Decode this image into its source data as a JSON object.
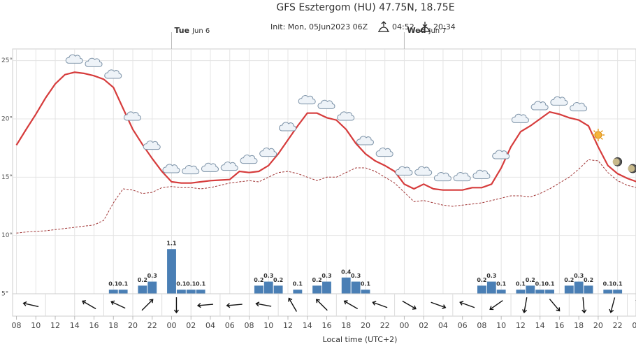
{
  "chart_data": {
    "type": "line",
    "title": "GFS Esztergom (HU) 47.75N, 18.75E",
    "subtitle": {
      "init": "Init: Mon, 05Jun2023 06Z",
      "sunrise": "04:52",
      "sunset": "20:34"
    },
    "x_label": "Local time (UTC+2)",
    "days": [
      {
        "weekday": "Tue",
        "date": "Jun 6",
        "x": 16
      },
      {
        "weekday": "Wed",
        "date": "Jun 7",
        "x": 40
      }
    ],
    "x": [
      0,
      1,
      2,
      3,
      4,
      5,
      6,
      7,
      8,
      9,
      10,
      11,
      12,
      13,
      14,
      15,
      16,
      17,
      18,
      19,
      20,
      21,
      22,
      23,
      24,
      25,
      26,
      27,
      28,
      29,
      30,
      31,
      32,
      33,
      34,
      35,
      36,
      37,
      38,
      39,
      40,
      41,
      42,
      43,
      44,
      45,
      46,
      47,
      48,
      49,
      50,
      51,
      52,
      53,
      54,
      55,
      56,
      57,
      58,
      59,
      60,
      61,
      62,
      63,
      64
    ],
    "series": [
      {
        "color": "#d63c3c",
        "dashed": false,
        "values": [
          17.75,
          19.1,
          20.4,
          21.8,
          23,
          23.8,
          24,
          23.9,
          23.7,
          23.4,
          22.7,
          20.9,
          19.1,
          17.8,
          16.6,
          15.5,
          14.6,
          14.5,
          14.5,
          14.6,
          14.7,
          14.75,
          14.8,
          15.5,
          15.4,
          15.5,
          16,
          17,
          18.2,
          19.4,
          20.5,
          20.5,
          20.1,
          19.9,
          19.1,
          17.9,
          17,
          16.4,
          16,
          15.5,
          14.4,
          14,
          14.4,
          14,
          13.9,
          13.9,
          13.9,
          14.1,
          14.1,
          14.4,
          15.8,
          17.6,
          18.9,
          19.4,
          20,
          20.6,
          20.4,
          20.1,
          19.9,
          19.4,
          17.6,
          16,
          15.3,
          14.9,
          14.6
        ]
      },
      {
        "color": "#a03434",
        "dashed": true,
        "values": [
          10.2,
          10.3,
          10.35,
          10.4,
          10.5,
          10.6,
          10.7,
          10.8,
          10.9,
          11.3,
          12.8,
          14,
          13.9,
          13.6,
          13.7,
          14.1,
          14.2,
          14.1,
          14.1,
          14,
          14.1,
          14.3,
          14.5,
          14.6,
          14.7,
          14.6,
          15,
          15.4,
          15.5,
          15.3,
          15,
          14.7,
          15,
          15,
          15.4,
          15.8,
          15.8,
          15.5,
          15,
          14.5,
          13.7,
          12.9,
          13,
          12.8,
          12.6,
          12.5,
          12.6,
          12.7,
          12.8,
          13,
          13.2,
          13.4,
          13.4,
          13.3,
          13.6,
          14,
          14.5,
          15,
          15.7,
          16.5,
          16.4,
          15.4,
          14.7,
          14.3,
          14.1
        ]
      }
    ],
    "precipitation": {
      "color": "#4a7fb5",
      "x": [
        10,
        11,
        13,
        14,
        16,
        17,
        18,
        19,
        25,
        26,
        27,
        29,
        31,
        32,
        34,
        35,
        36,
        48,
        49,
        50,
        52,
        53,
        54,
        55,
        57,
        58,
        59,
        61,
        62
      ],
      "values": [
        0.1,
        0.1,
        0.2,
        0.3,
        1.1,
        0.1,
        0.1,
        0.1,
        0.2,
        0.3,
        0.2,
        0.1,
        0.2,
        0.3,
        0.4,
        0.3,
        0.1,
        0.2,
        0.3,
        0.1,
        0.1,
        0.2,
        0.1,
        0.1,
        0.2,
        0.3,
        0.2,
        0.1,
        0.1
      ]
    },
    "wind": {
      "x": [
        1.5,
        4.5,
        7.5,
        10.5,
        13.5,
        16.5,
        19.5,
        22.5,
        25.5,
        28.5,
        31.5,
        34.5,
        37.5,
        40.5,
        43.5,
        46.5,
        49.5,
        52.5,
        55.5,
        58.5,
        61.5,
        64.5
      ],
      "direction": [
        283,
        null,
        300,
        295,
        45,
        180,
        265,
        265,
        280,
        330,
        315,
        300,
        290,
        120,
        110,
        290,
        235,
        190,
        140,
        175,
        195,
        130
      ]
    },
    "xlim": [
      -0.4,
      63.9
    ],
    "ylim": [
      5,
      26
    ],
    "xticks": [
      {
        "value": 0,
        "label": "08"
      },
      {
        "value": 2,
        "label": "10"
      },
      {
        "value": 4,
        "label": "12"
      },
      {
        "value": 6,
        "label": "14"
      },
      {
        "value": 8,
        "label": "16"
      },
      {
        "value": 10,
        "label": "18"
      },
      {
        "value": 12,
        "label": "20"
      },
      {
        "value": 14,
        "label": "22"
      },
      {
        "value": 16,
        "label": "00"
      },
      {
        "value": 18,
        "label": "02"
      },
      {
        "value": 20,
        "label": "04"
      },
      {
        "value": 22,
        "label": "06"
      },
      {
        "value": 24,
        "label": "08"
      },
      {
        "value": 26,
        "label": "10"
      },
      {
        "value": 28,
        "label": "12"
      },
      {
        "value": 30,
        "label": "14"
      },
      {
        "value": 32,
        "label": "16"
      },
      {
        "value": 34,
        "label": "18"
      },
      {
        "value": 36,
        "label": "20"
      },
      {
        "value": 38,
        "label": "22"
      },
      {
        "value": 40,
        "label": "00"
      },
      {
        "value": 42,
        "label": "02"
      },
      {
        "value": 44,
        "label": "04"
      },
      {
        "value": 46,
        "label": "06"
      },
      {
        "value": 48,
        "label": "08"
      },
      {
        "value": 50,
        "label": "10"
      },
      {
        "value": 52,
        "label": "12"
      },
      {
        "value": 54,
        "label": "14"
      },
      {
        "value": 56,
        "label": "16"
      },
      {
        "value": 58,
        "label": "18"
      },
      {
        "value": 60,
        "label": "20"
      },
      {
        "value": 62,
        "label": "22"
      },
      {
        "value": 64,
        "label": "00"
      }
    ],
    "yticks": [
      {
        "value": 5,
        "label": "5°"
      },
      {
        "value": 10,
        "label": "10°"
      },
      {
        "value": 15,
        "label": "15°"
      },
      {
        "value": 20,
        "label": "20°"
      },
      {
        "value": 25,
        "label": "25°"
      }
    ],
    "grid": true
  }
}
